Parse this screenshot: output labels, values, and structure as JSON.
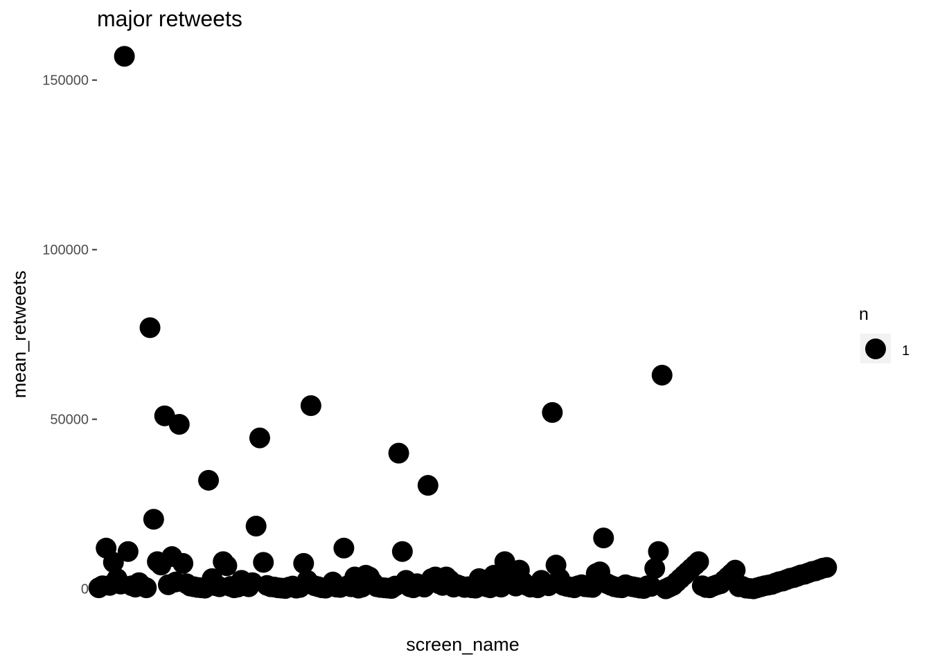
{
  "chart_data": {
    "type": "scatter",
    "title": "major retweets",
    "xlabel": "screen_name",
    "ylabel": "mean_retweets",
    "ylim": [
      -6000,
      163000
    ],
    "yticks": [
      0,
      50000,
      100000,
      150000
    ],
    "ytick_labels": [
      "0",
      "50000",
      "100000",
      "150000"
    ],
    "x_tick_labels_shown": false,
    "grid": false,
    "point_color": "#000000",
    "legend": {
      "title": "n",
      "position": "right",
      "entries": [
        {
          "label": "1"
        }
      ]
    },
    "x": [
      1,
      2,
      3,
      4,
      5,
      6,
      7,
      8,
      9,
      10,
      11,
      12,
      13,
      14,
      15,
      16,
      17,
      18,
      19,
      20,
      21,
      22,
      23,
      24,
      25,
      26,
      27,
      28,
      29,
      30,
      31,
      32,
      33,
      34,
      35,
      36,
      37,
      38,
      39,
      40,
      41,
      42,
      43,
      44,
      45,
      46,
      47,
      48,
      49,
      50,
      51,
      52,
      53,
      54,
      55,
      56,
      57,
      58,
      59,
      60,
      61,
      62,
      63,
      64,
      65,
      66,
      67,
      68,
      69,
      70,
      71,
      72,
      73,
      74,
      75,
      76,
      77,
      78,
      79,
      80,
      81,
      82,
      83,
      84,
      85,
      86,
      87,
      88,
      89,
      90,
      91,
      92,
      93,
      94,
      95,
      96,
      97,
      98,
      99,
      100,
      101,
      102,
      103,
      104,
      105,
      106,
      107,
      108,
      109,
      110,
      111,
      112,
      113,
      114,
      115,
      116,
      117,
      118,
      119,
      120,
      121,
      122,
      123,
      124,
      125,
      126,
      127,
      128,
      129,
      130,
      131,
      132,
      133,
      134,
      135,
      136,
      137,
      138,
      139,
      140,
      141,
      142,
      143,
      144,
      145,
      146,
      147,
      148,
      149,
      150,
      151,
      152,
      153,
      154,
      155,
      156,
      157,
      158,
      159,
      160,
      161,
      162,
      163,
      164,
      165,
      166,
      167,
      168,
      169,
      170,
      171,
      172,
      173,
      174,
      175,
      176,
      177,
      178,
      179,
      180,
      181,
      182,
      183,
      184,
      185,
      186,
      187,
      188,
      189,
      190,
      191,
      192,
      193,
      194,
      195,
      196,
      197,
      198,
      199,
      200
    ],
    "y": [
      300,
      900,
      12000,
      1000,
      7800,
      3000,
      1400,
      157000,
      11000,
      900,
      500,
      1800,
      800,
      300,
      77000,
      20500,
      8000,
      7000,
      51000,
      1200,
      9500,
      2000,
      48500,
      7500,
      1500,
      800,
      600,
      400,
      300,
      200,
      32000,
      3000,
      900,
      600,
      8000,
      6800,
      700,
      300,
      500,
      2500,
      900,
      600,
      1800,
      18500,
      44500,
      7800,
      1000,
      600,
      500,
      300,
      200,
      100,
      500,
      800,
      200,
      400,
      7500,
      2500,
      54000,
      900,
      600,
      300,
      200,
      700,
      2000,
      500,
      400,
      12000,
      900,
      600,
      3500,
      200,
      500,
      4000,
      3500,
      1800,
      600,
      400,
      300,
      200,
      100,
      800,
      40000,
      11000,
      2500,
      600,
      300,
      1500,
      1000,
      500,
      30500,
      3000,
      3500,
      1500,
      1000,
      3500,
      2500,
      500,
      1200,
      800,
      400,
      600,
      300,
      200,
      3000,
      1500,
      600,
      300,
      4000,
      2000,
      500,
      8000,
      3000,
      1500,
      800,
      5500,
      2000,
      1000,
      500,
      600,
      300,
      2500,
      1500,
      900,
      52000,
      7000,
      3000,
      1000,
      700,
      500,
      300,
      900,
      1200,
      600,
      500,
      400,
      4500,
      5000,
      15000,
      1500,
      1000,
      600,
      400,
      300,
      1200,
      800,
      600,
      400,
      200,
      100,
      900,
      700,
      6000,
      11000,
      63000,
      0,
      500,
      1000,
      2000,
      3000,
      4000,
      5000,
      6000,
      7000,
      8000,
      900,
      400,
      300,
      800,
      1200,
      1500,
      2500,
      3500,
      4500,
      5500,
      600,
      700,
      200,
      100,
      0,
      300,
      600,
      900,
      1100,
      1300,
      1700,
      2100,
      2300,
      2700,
      3100,
      3300,
      3700,
      4100,
      4300,
      4700,
      5100,
      5300,
      5700,
      6100,
      6300
    ]
  }
}
